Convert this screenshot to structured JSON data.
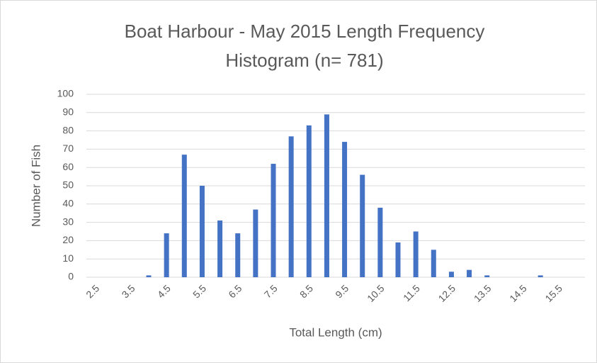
{
  "chart_data": {
    "type": "bar",
    "title": [
      "Boat Harbour - May 2015 Length Frequency",
      "Histogram (n= 781)"
    ],
    "x_label": "Total Length (cm)",
    "y_label": "Number of Fish",
    "categories": [
      "2.5",
      null,
      "3.5",
      null,
      "4.5",
      null,
      "5.5",
      null,
      "6.5",
      null,
      "7.5",
      null,
      "8.5",
      null,
      "9.5",
      null,
      "10.5",
      null,
      "11.5",
      null,
      "12.5",
      null,
      "13.5",
      null,
      "14.5",
      null,
      "15.5",
      null
    ],
    "values": [
      0,
      0,
      0,
      1,
      24,
      67,
      50,
      31,
      24,
      37,
      62,
      77,
      83,
      89,
      74,
      56,
      38,
      19,
      25,
      15,
      3,
      4,
      1,
      0,
      0,
      1,
      0,
      0
    ],
    "color": "#4472c4",
    "ylim": [
      0,
      100
    ],
    "yticks": [
      0,
      10,
      20,
      30,
      40,
      50,
      60,
      70,
      80,
      90,
      100
    ],
    "grid": true
  }
}
